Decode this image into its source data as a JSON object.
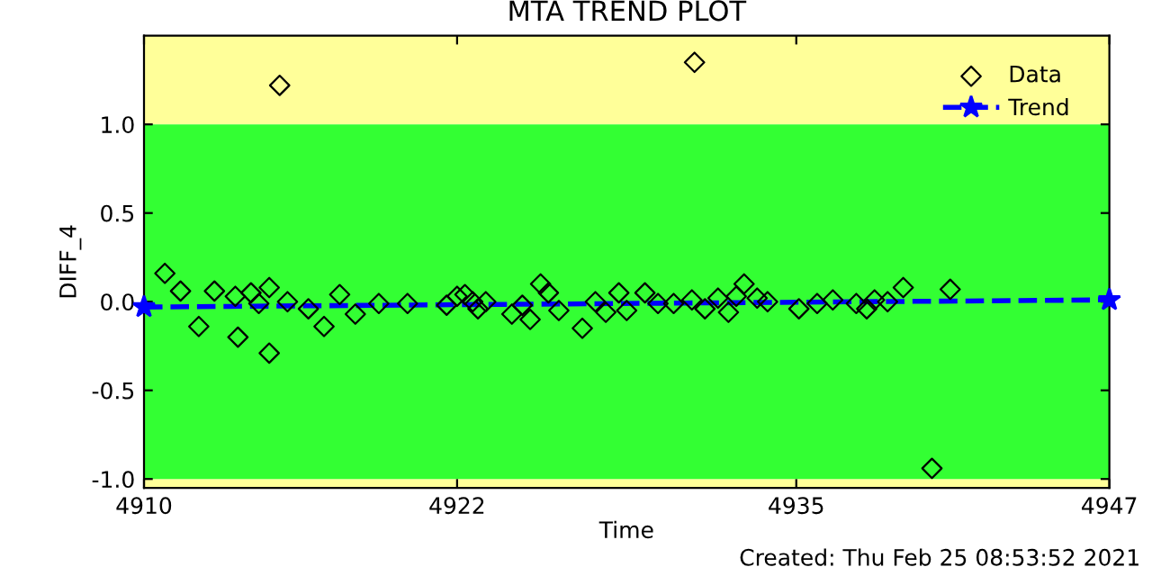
{
  "chart_data": {
    "type": "scatter",
    "title": "MTA TREND PLOT",
    "xlabel": "Time",
    "ylabel": "DIFF_4",
    "annotations": [
      "Created: Thu Feb 25 08:53:52 2021"
    ],
    "xlim": [
      4910,
      4947
    ],
    "xticks": [
      4910,
      4922,
      4935,
      4947
    ],
    "ylim": [
      -1.05,
      1.5
    ],
    "yticks": [
      {
        "value": -1,
        "label": "-1.0"
      },
      {
        "value": -0.5,
        "label": "-0.5"
      },
      {
        "value": 0,
        "label": "0.0"
      },
      {
        "value": 0.5,
        "label": "0.5"
      },
      {
        "value": 1,
        "label": "1.0"
      }
    ],
    "bands": [
      {
        "axis": "y",
        "from": 1,
        "to": 1.5,
        "color": "#ffff99"
      },
      {
        "axis": "y",
        "from": -1.05,
        "to": -1,
        "color": "#ffff99"
      },
      {
        "axis": "y",
        "from": -1,
        "to": 1,
        "color": "#33ff33"
      }
    ],
    "grid": false,
    "legend": "top right",
    "series": [
      {
        "name": "Data",
        "color": "#000000",
        "marker": "diamond",
        "x": [
          4910.8,
          4911.4,
          4912.1,
          4912.7,
          4913.5,
          4913.6,
          4914.1,
          4914.4,
          4914.8,
          4915.2,
          4914.8,
          4915.5,
          4916.3,
          4916.9,
          4917.5,
          4918.1,
          4919.0,
          4920.1,
          4921.6,
          4922.0,
          4922.3,
          4922.6,
          4922.8,
          4923.1,
          4924.1,
          4924.5,
          4924.8,
          4925.2,
          4925.5,
          4925.9,
          4926.8,
          4927.3,
          4927.7,
          4928.2,
          4928.5,
          4929.2,
          4929.7,
          4930.3,
          4931.0,
          4931.1,
          4931.5,
          4932.0,
          4932.4,
          4932.7,
          4933.0,
          4933.5,
          4933.9,
          4935.1,
          4935.8,
          4936.4,
          4937.3,
          4937.7,
          4938.0,
          4938.5,
          4939.1,
          4940.2,
          4940.9
        ],
        "values": [
          0.16,
          0.06,
          -0.14,
          0.06,
          0.03,
          -0.2,
          0.05,
          -0.01,
          0.08,
          1.22,
          -0.29,
          0,
          -0.04,
          -0.14,
          0.04,
          -0.07,
          -0.01,
          -0.01,
          -0.02,
          0.03,
          0.04,
          0,
          -0.04,
          0,
          -0.07,
          -0.02,
          -0.1,
          0.1,
          0.05,
          -0.05,
          -0.15,
          0,
          -0.06,
          0.05,
          -0.05,
          0.05,
          -0.01,
          -0.01,
          0.01,
          1.35,
          -0.04,
          0.02,
          -0.06,
          0.03,
          0.1,
          0.02,
          0,
          -0.04,
          -0.01,
          0.01,
          -0.01,
          -0.04,
          0.01,
          0,
          0.08,
          -0.94,
          0.07
        ]
      },
      {
        "name": "Trend",
        "type": "line",
        "color": "#0000ff",
        "marker": "star",
        "line_style": "dashed",
        "x": [
          4910,
          4947
        ],
        "values": [
          -0.03,
          0.01
        ]
      }
    ]
  }
}
